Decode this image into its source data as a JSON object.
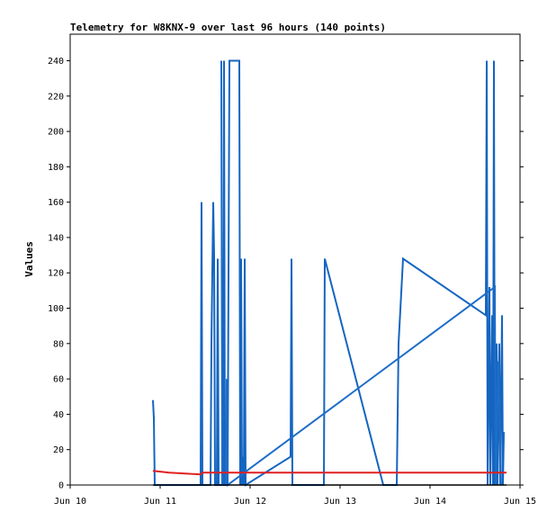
{
  "chart_data": {
    "type": "line",
    "title": "Telemetry for W8KNX-9 over last 96 hours (140 points)",
    "ylabel": "Values",
    "xlabel": "",
    "ylim": [
      0,
      255
    ],
    "xlim": [
      10.0,
      15.0
    ],
    "x_ticks": [
      {
        "x": 10,
        "label": "Jun 10"
      },
      {
        "x": 11,
        "label": "Jun 11"
      },
      {
        "x": 12,
        "label": "Jun 12"
      },
      {
        "x": 13,
        "label": "Jun 13"
      },
      {
        "x": 14,
        "label": "Jun 14"
      },
      {
        "x": 15,
        "label": "Jun 15"
      }
    ],
    "y_ticks": [
      0,
      20,
      40,
      60,
      80,
      100,
      120,
      140,
      160,
      180,
      200,
      220,
      240
    ],
    "grid": false,
    "series": [
      {
        "color": "#1565c0",
        "points": [
          [
            10.92,
            48
          ],
          [
            10.93,
            38
          ],
          [
            10.94,
            0
          ],
          [
            11.45,
            0
          ],
          [
            11.46,
            160
          ],
          [
            11.47,
            0
          ],
          [
            11.56,
            0
          ],
          [
            11.57,
            80
          ],
          [
            11.59,
            160
          ],
          [
            11.6,
            130
          ],
          [
            11.61,
            0
          ],
          [
            11.63,
            0
          ],
          [
            11.64,
            128
          ],
          [
            11.65,
            0
          ],
          [
            11.7,
            0
          ],
          [
            11.71,
            240
          ],
          [
            11.72,
            0
          ],
          [
            11.75,
            0
          ],
          [
            11.77,
            240
          ],
          [
            11.88,
            240
          ],
          [
            11.89,
            0
          ],
          [
            11.9,
            128
          ],
          [
            11.91,
            0
          ],
          [
            11.92,
            16
          ],
          [
            11.93,
            0
          ],
          [
            11.94,
            128
          ],
          [
            11.95,
            0
          ],
          [
            12.45,
            16
          ],
          [
            12.46,
            128
          ],
          [
            12.47,
            0
          ],
          [
            12.82,
            0
          ],
          [
            12.83,
            128
          ],
          [
            13.48,
            0
          ],
          [
            13.63,
            0
          ],
          [
            13.65,
            80
          ],
          [
            13.7,
            128
          ],
          [
            14.62,
            96
          ],
          [
            14.63,
            240
          ],
          [
            14.64,
            0
          ],
          [
            14.66,
            112
          ],
          [
            14.67,
            0
          ],
          [
            14.69,
            96
          ],
          [
            14.7,
            0
          ],
          [
            14.71,
            240
          ],
          [
            14.72,
            0
          ],
          [
            14.74,
            80
          ],
          [
            14.75,
            0
          ],
          [
            14.77,
            80
          ],
          [
            14.78,
            0
          ],
          [
            14.8,
            96
          ],
          [
            14.81,
            0
          ],
          [
            14.82,
            30
          ]
        ]
      },
      {
        "color": "#1e6ec8",
        "points": [
          [
            11.68,
            240
          ],
          [
            11.69,
            0
          ],
          [
            11.73,
            0
          ],
          [
            11.74,
            60
          ],
          [
            11.75,
            0
          ],
          [
            14.72,
            112
          ],
          [
            14.73,
            0
          ],
          [
            14.76,
            70
          ],
          [
            14.79,
            0
          ]
        ]
      },
      {
        "color": "#e02020",
        "points": [
          [
            10.92,
            8
          ],
          [
            11.1,
            7
          ],
          [
            11.45,
            6
          ],
          [
            11.47,
            7
          ],
          [
            11.6,
            7
          ],
          [
            12.0,
            7
          ],
          [
            12.5,
            7
          ],
          [
            13.0,
            7
          ],
          [
            13.5,
            7
          ],
          [
            14.0,
            7
          ],
          [
            14.5,
            7
          ],
          [
            14.85,
            7
          ]
        ]
      },
      {
        "color": "#000000",
        "points": [
          [
            10.92,
            0
          ],
          [
            11.0,
            0
          ],
          [
            12.0,
            0
          ],
          [
            13.0,
            0
          ],
          [
            14.0,
            0
          ],
          [
            14.85,
            0
          ]
        ]
      }
    ]
  }
}
